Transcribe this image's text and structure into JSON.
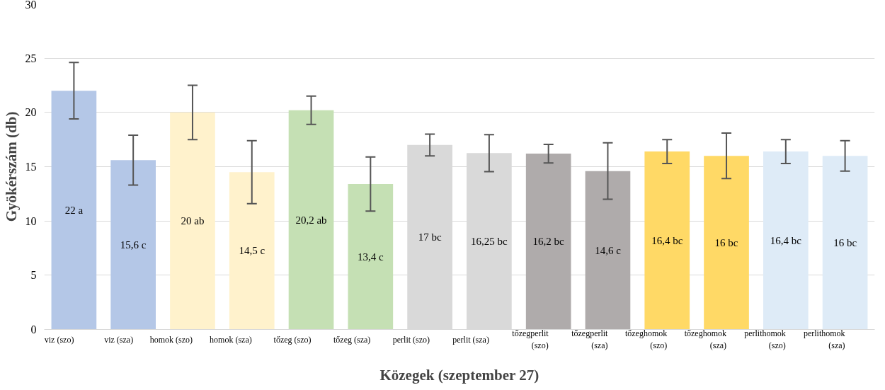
{
  "chart_data": {
    "type": "bar",
    "xlabel": "Közegek (szeptember 27)",
    "ylabel": "Gyökérszám (db)",
    "categories": [
      "viz (szo)",
      "viz (sza)",
      "homok (szo)",
      "homok (sza)",
      "tőzeg (szo)",
      "tőzeg (sza)",
      "perlit (szo)",
      "perlit (sza)",
      "tőzegperlit (szo)",
      "tőzegperlit (sza)",
      "tőzeghomok (szo)",
      "tőzeghomok (sza)",
      "perlithomok (szo)",
      "perlithomok (sza)"
    ],
    "values": [
      22,
      15.6,
      20,
      14.5,
      20.2,
      13.4,
      17,
      16.25,
      16.2,
      14.6,
      16.4,
      16,
      16.4,
      16
    ],
    "errors": [
      2.6,
      2.3,
      2.5,
      2.9,
      1.3,
      2.5,
      1.0,
      1.7,
      0.85,
      2.6,
      1.1,
      2.1,
      1.1,
      1.4
    ],
    "colors": [
      "#b4c7e7",
      "#b4c7e7",
      "#fff2cc",
      "#fff2cc",
      "#c5e0b4",
      "#c5e0b4",
      "#d9d9d9",
      "#d9d9d9",
      "#afabab",
      "#afabab",
      "#ffd966",
      "#ffd966",
      "#deebf7",
      "#deebf7"
    ],
    "value_labels": [
      "22 a",
      "15,6 c",
      "20 ab",
      "14,5 c",
      "20,2 ab",
      "13,4 c",
      "17 bc",
      "16,25 bc",
      "16,2 bc",
      "14,6 c",
      "16,4 bc",
      "16 bc",
      "16,4 bc",
      "16 bc"
    ],
    "ylim": [
      0,
      30
    ],
    "yticks": [
      0,
      5,
      10,
      15,
      20,
      25,
      30
    ],
    "grid": "y"
  }
}
